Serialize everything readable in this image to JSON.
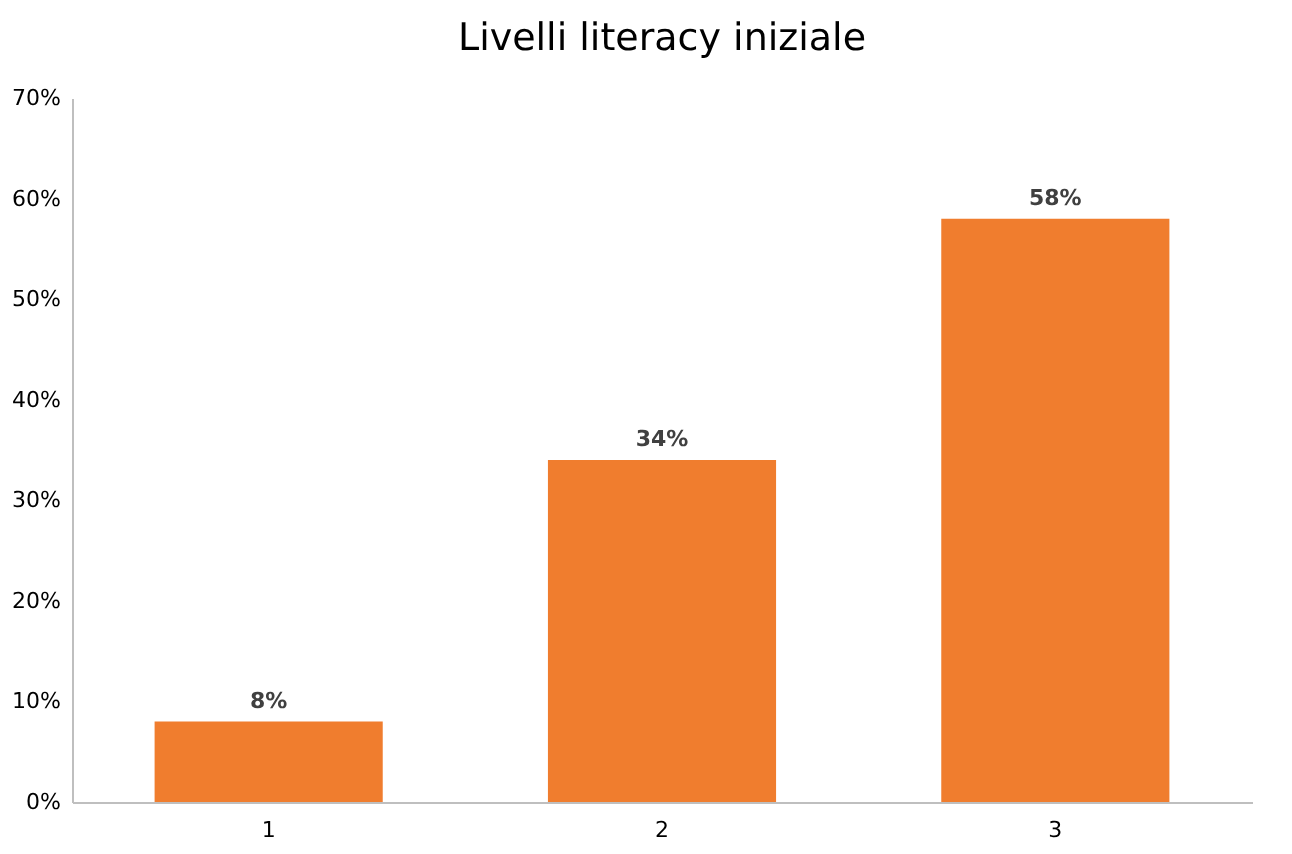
{
  "chart_data": {
    "type": "bar",
    "title": "Livelli literacy iniziale",
    "categories": [
      "1",
      "2",
      "3"
    ],
    "values": [
      8,
      34,
      58
    ],
    "color": "#f07d2e",
    "value_labels": [
      "8%",
      "34%",
      "58%"
    ],
    "ylim": [
      0,
      70
    ],
    "yticks": [
      {
        "value": 0,
        "label": "0%"
      },
      {
        "value": 10,
        "label": "10%"
      },
      {
        "value": 20,
        "label": "20%"
      },
      {
        "value": 30,
        "label": "30%"
      },
      {
        "value": 40,
        "label": "40%"
      },
      {
        "value": 50,
        "label": "50%"
      },
      {
        "value": 60,
        "label": "60%"
      },
      {
        "value": 70,
        "label": "70%"
      }
    ],
    "grid": false
  }
}
